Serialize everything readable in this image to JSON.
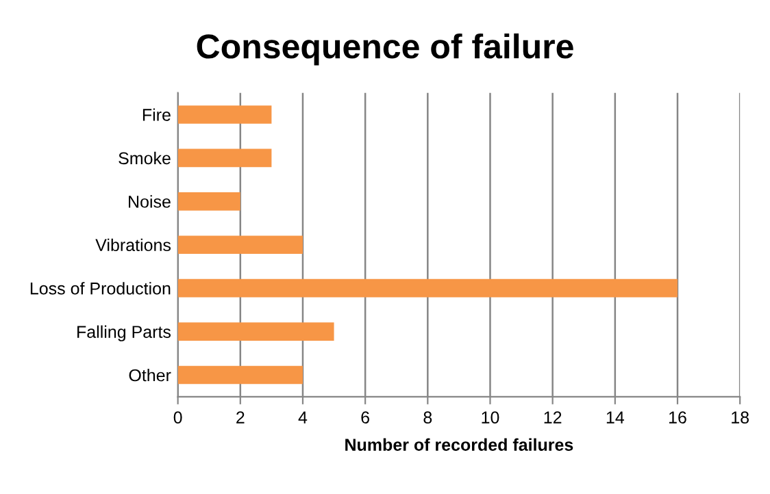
{
  "chart_data": {
    "type": "bar",
    "orientation": "horizontal",
    "title": "Consequence of failure",
    "xlabel": "Number of recorded failures",
    "categories": [
      "Fire",
      "Smoke",
      "Noise",
      "Vibrations",
      "Loss of Production",
      "Falling Parts",
      "Other"
    ],
    "values": [
      3,
      3,
      2,
      4,
      16,
      5,
      4
    ],
    "color": "#f79646",
    "xlim": [
      0,
      18
    ],
    "xticks": [
      0,
      2,
      4,
      6,
      8,
      10,
      12,
      14,
      16,
      18
    ],
    "grid": "x",
    "legend": false
  }
}
